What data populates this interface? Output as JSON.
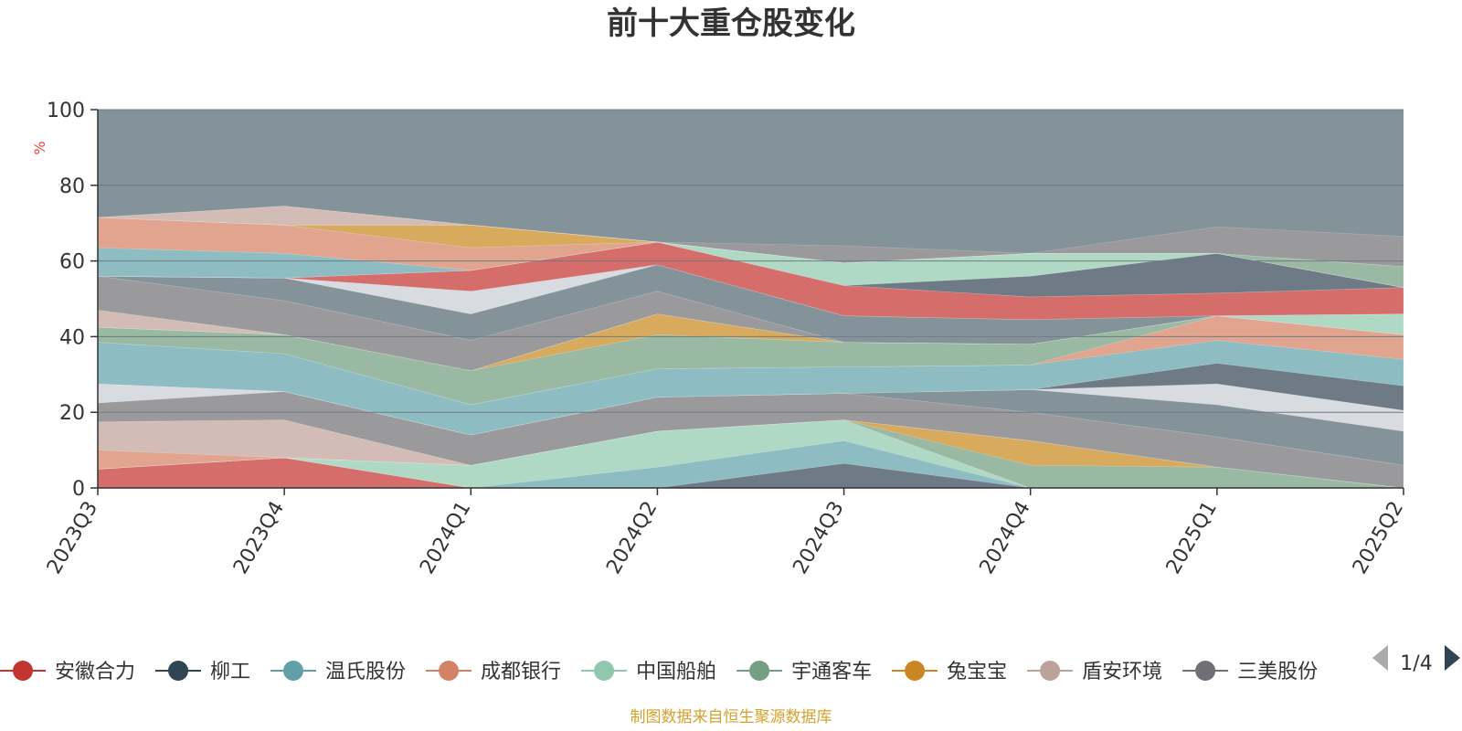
{
  "chart_data": {
    "type": "area",
    "title": "前十大重仓股变化",
    "ylabel": "%",
    "ylim": [
      0,
      100
    ],
    "yticks": [
      0,
      20,
      40,
      60,
      80,
      100
    ],
    "categories": [
      "2023Q3",
      "2023Q4",
      "2024Q1",
      "2024Q2",
      "2024Q3",
      "2024Q4",
      "2025Q1",
      "2025Q2"
    ],
    "background_color": "#84939a",
    "series": [
      {
        "name": "安徽合力",
        "color": "#d56d6a",
        "values": [
          5,
          8,
          0,
          0,
          0,
          0,
          0,
          0
        ]
      },
      {
        "name": "柳工",
        "color": "#6e7b86",
        "values": [
          0,
          0,
          0,
          0,
          6.5,
          0,
          0,
          0
        ]
      },
      {
        "name": "温氏股份",
        "color": "#8dbcc2",
        "values": [
          0,
          0,
          0,
          5.5,
          6,
          0,
          0,
          0
        ]
      },
      {
        "name": "中国船舶",
        "color": "#afd9c5",
        "values": [
          0,
          0,
          6,
          9.5,
          5.5,
          0,
          0,
          0
        ]
      },
      {
        "name": "宇通客车",
        "color": "#9ab9a2",
        "values": [
          0,
          0,
          0,
          0,
          0,
          6,
          5.5,
          0
        ]
      },
      {
        "name": "兔宝宝",
        "color": "#d8aa5e",
        "values": [
          0,
          0,
          0,
          0,
          0,
          6.5,
          0,
          0
        ]
      },
      {
        "name": "成都银行",
        "color": "#e1a48e",
        "values": [
          5,
          0,
          0,
          0,
          0,
          0,
          0,
          0
        ]
      },
      {
        "name": "盾安环境",
        "color": "#d3bcb5",
        "values": [
          7.5,
          10,
          0,
          0,
          0,
          0,
          0,
          0
        ]
      },
      {
        "name": "三美股份",
        "color": "#9a9a9c",
        "values": [
          5,
          7.5,
          8,
          9,
          7,
          7.5,
          8,
          6
        ]
      },
      {
        "name": "",
        "color": "#84939a",
        "values": [
          0,
          0,
          0,
          0,
          0,
          6,
          8.5,
          9
        ]
      },
      {
        "name": "",
        "color": "#d8dbe0",
        "values": [
          5,
          0,
          0,
          0,
          0,
          0,
          5.5,
          5.5
        ]
      },
      {
        "name": "",
        "color": "#6e7b86",
        "values": [
          0,
          0,
          0,
          0,
          0,
          0,
          5.5,
          6.5
        ]
      },
      {
        "name": "",
        "color": "#8dbcc2",
        "values": [
          11,
          10,
          8,
          7.5,
          7,
          6.5,
          6,
          7
        ]
      },
      {
        "name": "",
        "color": "#e1a48e",
        "values": [
          0,
          0,
          0,
          0,
          0,
          0,
          6.5,
          6.5
        ]
      },
      {
        "name": "",
        "color": "#9ab9a2",
        "values": [
          4,
          5,
          9,
          9,
          6.5,
          5.5,
          0,
          0
        ]
      },
      {
        "name": "",
        "color": "#d8aa5e",
        "values": [
          0,
          0,
          0,
          5.5,
          0,
          0,
          0,
          0
        ]
      },
      {
        "name": "",
        "color": "#afd9c5",
        "values": [
          0,
          0,
          0,
          0,
          0,
          0,
          0,
          5.5
        ]
      },
      {
        "name": "",
        "color": "#d3bcb5",
        "values": [
          4.5,
          0,
          0,
          0,
          0,
          0,
          0,
          0
        ]
      },
      {
        "name": "",
        "color": "#9a9a9c",
        "values": [
          9,
          9,
          8,
          6,
          0,
          0,
          0,
          0
        ]
      },
      {
        "name": "",
        "color": "#84939a",
        "values": [
          0,
          6,
          7,
          7,
          7,
          6.5,
          0,
          0
        ]
      },
      {
        "name": "",
        "color": "#d8dbe0",
        "values": [
          0,
          0,
          6,
          0,
          0,
          0,
          0,
          0
        ]
      },
      {
        "name": "",
        "color": "#d56d6a",
        "values": [
          0,
          0,
          5.5,
          6,
          8,
          6,
          6,
          7
        ]
      },
      {
        "name": "",
        "color": "#6e7b86",
        "values": [
          0,
          0,
          0,
          0,
          0,
          5.5,
          10.5,
          0
        ]
      },
      {
        "name": "",
        "color": "#afd9c5",
        "values": [
          0,
          0,
          0,
          0,
          6,
          6,
          0,
          0
        ]
      },
      {
        "name": "",
        "color": "#8dbcc2",
        "values": [
          7.5,
          6.5,
          0,
          0,
          0,
          0,
          0,
          0
        ]
      },
      {
        "name": "",
        "color": "#e1a48e",
        "values": [
          8,
          7.5,
          6,
          0,
          0,
          0,
          0,
          0
        ]
      },
      {
        "name": "",
        "color": "#d8aa5e",
        "values": [
          0,
          0,
          6,
          0,
          0,
          0,
          0,
          0
        ]
      },
      {
        "name": "",
        "color": "#9ab9a2",
        "values": [
          0,
          0,
          0,
          0,
          0,
          0,
          0,
          5.5
        ]
      },
      {
        "name": "",
        "color": "#d3bcb5",
        "values": [
          0,
          5,
          0,
          0,
          0,
          0,
          0,
          0
        ]
      },
      {
        "name": "",
        "color": "#9a9a9c",
        "values": [
          0,
          0,
          0,
          0,
          4.5,
          0,
          7,
          8
        ]
      }
    ]
  },
  "legend": {
    "items": [
      {
        "name": "安徽合力",
        "color": "#c23531"
      },
      {
        "name": "柳工",
        "color": "#2f4554"
      },
      {
        "name": "温氏股份",
        "color": "#61a0a8"
      },
      {
        "name": "成都银行",
        "color": "#d48265"
      },
      {
        "name": "中国船舶",
        "color": "#91c7ae"
      },
      {
        "name": "宇通客车",
        "color": "#749f83"
      },
      {
        "name": "兔宝宝",
        "color": "#ca8622"
      },
      {
        "name": "盾安环境",
        "color": "#bda29a"
      },
      {
        "name": "三美股份",
        "color": "#6e7074"
      }
    ],
    "page_indicator": "1/4"
  },
  "source_note": "制图数据来自恒生聚源数据库",
  "colors": {
    "title": "#333333",
    "axis": "#333333",
    "gridline": "#6f7b82",
    "unit_label": "#e8433d",
    "source_note": "#d4a22e",
    "pager_active": "#2f4554",
    "pager_inactive": "#aaaaaa"
  }
}
